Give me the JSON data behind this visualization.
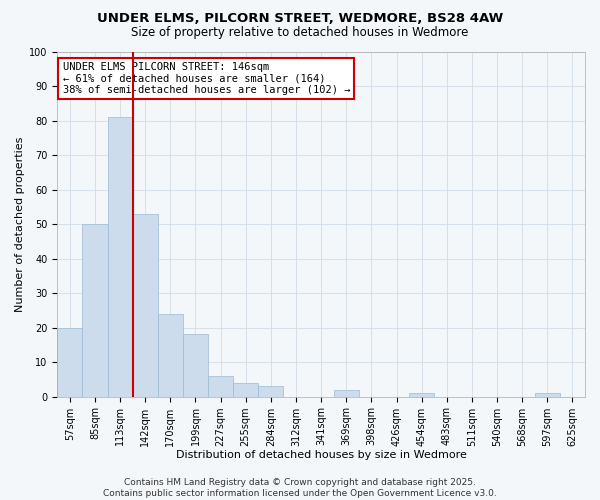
{
  "title": "UNDER ELMS, PILCORN STREET, WEDMORE, BS28 4AW",
  "subtitle": "Size of property relative to detached houses in Wedmore",
  "xlabel": "Distribution of detached houses by size in Wedmore",
  "ylabel": "Number of detached properties",
  "bar_labels": [
    "57sqm",
    "85sqm",
    "113sqm",
    "142sqm",
    "170sqm",
    "199sqm",
    "227sqm",
    "255sqm",
    "284sqm",
    "312sqm",
    "341sqm",
    "369sqm",
    "398sqm",
    "426sqm",
    "454sqm",
    "483sqm",
    "511sqm",
    "540sqm",
    "568sqm",
    "597sqm",
    "625sqm"
  ],
  "bar_values": [
    20,
    50,
    81,
    53,
    24,
    18,
    6,
    4,
    3,
    0,
    0,
    2,
    0,
    0,
    1,
    0,
    0,
    0,
    0,
    1,
    0
  ],
  "bar_color": "#ccdcec",
  "bar_edge_color": "#9bbbd4",
  "bar_width": 1.0,
  "vline_color": "#cc0000",
  "vline_index": 3,
  "annotation_line1": "UNDER ELMS PILCORN STREET: 146sqm",
  "annotation_line2": "← 61% of detached houses are smaller (164)",
  "annotation_line3": "38% of semi-detached houses are larger (102) →",
  "annotation_box_color": "#cc0000",
  "ylim": [
    0,
    100
  ],
  "yticks": [
    0,
    10,
    20,
    30,
    40,
    50,
    60,
    70,
    80,
    90,
    100
  ],
  "grid_color": "#d0dce8",
  "background_color": "#f4f7fa",
  "footer_line1": "Contains HM Land Registry data © Crown copyright and database right 2025.",
  "footer_line2": "Contains public sector information licensed under the Open Government Licence v3.0.",
  "title_fontsize": 9.5,
  "subtitle_fontsize": 8.5,
  "axis_label_fontsize": 8,
  "tick_fontsize": 7,
  "annotation_fontsize": 7.5,
  "footer_fontsize": 6.5
}
